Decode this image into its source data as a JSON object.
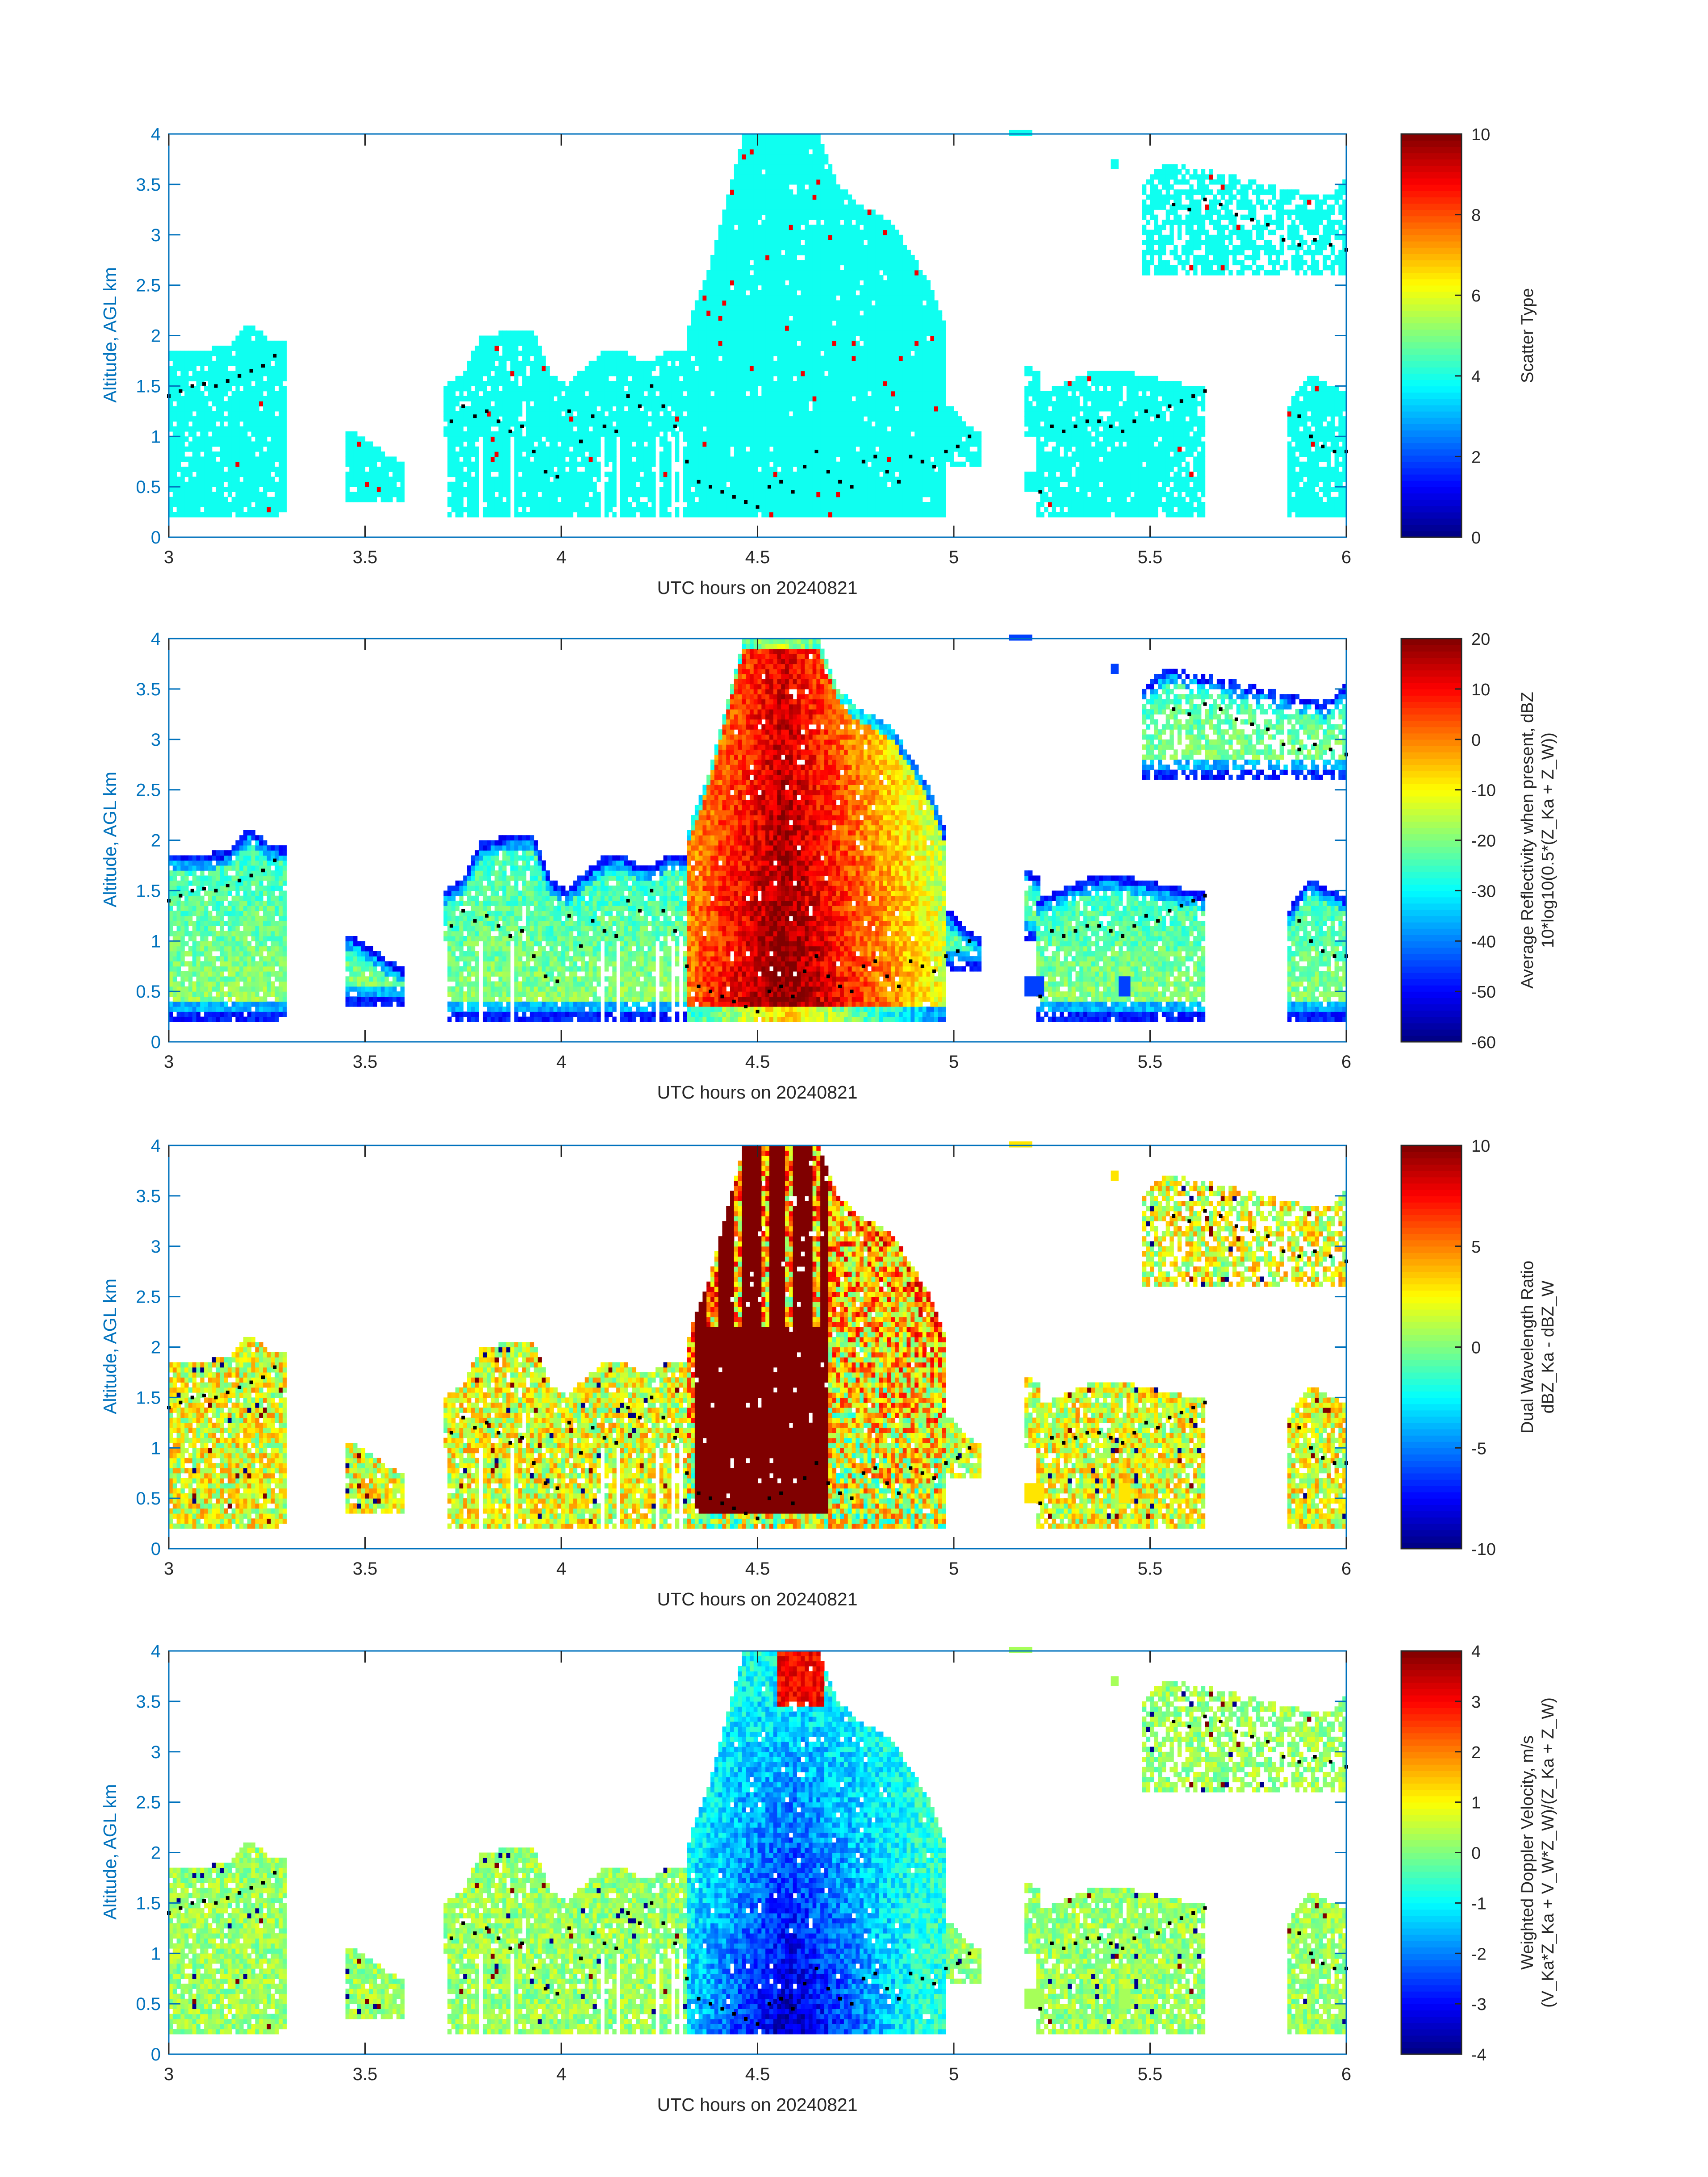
{
  "figure": {
    "date": "20240821",
    "colormap": "jet",
    "accent_axis_color": "#0072bd",
    "track_marker_color": "#000000"
  },
  "chart_data": [
    {
      "type": "heatmap",
      "panel": "scatter-type",
      "xlabel": "UTC hours on 20240821",
      "ylabel": "Altitude, AGL km",
      "xlim": [
        3,
        6
      ],
      "ylim": [
        0,
        4
      ],
      "xticks": [
        "3",
        "3.5",
        "4",
        "4.5",
        "5",
        "5.5",
        "6"
      ],
      "yticks": [
        "0",
        "0.5",
        "1",
        "1.5",
        "2",
        "2.5",
        "3",
        "3.5",
        "4"
      ],
      "colorbar": {
        "label": "Scatter Type",
        "label2": "",
        "clim": [
          0,
          10
        ],
        "ticks": [
          "0",
          "2",
          "4",
          "6",
          "8",
          "10"
        ]
      },
      "grid": false,
      "fill_mode": "scatter",
      "background_value": 3.9,
      "accent_value": 8.9
    },
    {
      "type": "heatmap",
      "panel": "reflectivity",
      "xlabel": "UTC hours on 20240821",
      "ylabel": "Altitude, AGL km",
      "xlim": [
        3,
        6
      ],
      "ylim": [
        0,
        4
      ],
      "xticks": [
        "3",
        "3.5",
        "4",
        "4.5",
        "5",
        "5.5",
        "6"
      ],
      "yticks": [
        "0",
        "0.5",
        "1",
        "1.5",
        "2",
        "2.5",
        "3",
        "3.5",
        "4"
      ],
      "colorbar": {
        "label": "Average Reflectivity when present, dBZ",
        "label2": "10*log10(0.5*(Z_Ka + Z_W))",
        "clim": [
          -60,
          20
        ],
        "ticks": [
          "-60",
          "-50",
          "-40",
          "-30",
          "-20",
          "-10",
          "0",
          "10",
          "20"
        ]
      },
      "grid": false,
      "fill_mode": "reflectivity"
    },
    {
      "type": "heatmap",
      "panel": "dwr",
      "xlabel": "UTC hours on 20240821",
      "ylabel": "Altitude, AGL km",
      "xlim": [
        3,
        6
      ],
      "ylim": [
        0,
        4
      ],
      "xticks": [
        "3",
        "3.5",
        "4",
        "4.5",
        "5",
        "5.5",
        "6"
      ],
      "yticks": [
        "0",
        "0.5",
        "1",
        "1.5",
        "2",
        "2.5",
        "3",
        "3.5",
        "4"
      ],
      "colorbar": {
        "label": "Dual Wavelength Ratio",
        "label2": "dBZ_Ka - dBZ_W",
        "clim": [
          -10,
          10
        ],
        "ticks": [
          "-10",
          "-5",
          "0",
          "5",
          "10"
        ]
      },
      "grid": false,
      "fill_mode": "dwr"
    },
    {
      "type": "heatmap",
      "panel": "doppler",
      "xlabel": "UTC hours on 20240821",
      "ylabel": "Altitude, AGL km",
      "xlim": [
        3,
        6
      ],
      "ylim": [
        0,
        4
      ],
      "xticks": [
        "3",
        "3.5",
        "4",
        "4.5",
        "5",
        "5.5",
        "6"
      ],
      "yticks": [
        "0",
        "0.5",
        "1",
        "1.5",
        "2",
        "2.5",
        "3",
        "3.5",
        "4"
      ],
      "colorbar": {
        "label": "Weighted Doppler Velocity, m/s",
        "label2": "(V_Ka*Z_Ka + V_W*Z_W)/(Z_Ka + Z_W)",
        "clim": [
          -4,
          4
        ],
        "ticks": [
          "-4",
          "-3",
          "-2",
          "-1",
          "0",
          "1",
          "2",
          "3",
          "4"
        ]
      },
      "grid": false,
      "fill_mode": "doppler"
    }
  ],
  "echo_regions": [
    {
      "name": "left-block",
      "x0": 3.0,
      "x1": 3.3,
      "ybot": 0.2,
      "ytop": [
        1.85,
        1.85,
        1.85,
        1.9,
        2.1,
        1.95,
        1.9
      ]
    },
    {
      "name": "small-cells",
      "x0": 3.45,
      "x1": 3.6,
      "ybot": 0.35,
      "ytop": [
        1.05,
        0.95,
        0.8,
        0.7
      ]
    },
    {
      "name": "mid-block",
      "x0": 3.7,
      "x1": 4.32,
      "ybot": 0.2,
      "ytop": [
        1.5,
        1.6,
        1.95,
        2.0,
        2.05,
        2.05,
        1.6,
        1.5,
        1.65,
        1.8,
        1.85,
        1.75,
        1.75,
        1.85,
        1.8
      ]
    },
    {
      "name": "main-core",
      "x0": 4.32,
      "x1": 4.98,
      "ybot": 0.2,
      "ytop": [
        2.1,
        2.6,
        3.3,
        4.0,
        4.0,
        4.0,
        4.0,
        4.0,
        3.5,
        3.3,
        3.2,
        3.1,
        2.8,
        2.5,
        2.0
      ]
    },
    {
      "name": "tail-edge",
      "x0": 4.98,
      "x1": 5.07,
      "ybot": 0.7,
      "ytop": [
        1.3,
        1.1,
        1.0
      ]
    },
    {
      "name": "scattered-cell",
      "x0": 5.18,
      "x1": 5.22,
      "ybot": 1.0,
      "ytop": [
        1.7,
        1.6
      ]
    },
    {
      "name": "right-block",
      "x0": 5.21,
      "x1": 5.64,
      "ybot": 0.2,
      "ytop": [
        1.4,
        1.5,
        1.6,
        1.65,
        1.6,
        1.55,
        1.5,
        1.45
      ]
    },
    {
      "name": "upper-right",
      "x0": 5.48,
      "x1": 6.0,
      "ybot": 2.6,
      "ytop": [
        3.5,
        3.7,
        3.65,
        3.6,
        3.55,
        3.5,
        3.45,
        3.4,
        3.35,
        3.55
      ]
    },
    {
      "name": "far-right-low",
      "x0": 5.85,
      "x1": 6.0,
      "ybot": 0.2,
      "ytop": [
        1.3,
        1.6,
        1.5,
        1.4
      ]
    }
  ],
  "track_points": {
    "x": [
      3.0,
      3.03,
      3.06,
      3.09,
      3.12,
      3.15,
      3.18,
      3.21,
      3.24,
      3.27,
      3.72,
      3.75,
      3.78,
      3.81,
      3.84,
      3.87,
      3.9,
      3.93,
      3.96,
      3.99,
      4.02,
      4.05,
      4.08,
      4.11,
      4.14,
      4.17,
      4.2,
      4.23,
      4.26,
      4.29,
      4.32,
      4.35,
      4.38,
      4.41,
      4.44,
      4.47,
      4.5,
      4.53,
      4.56,
      4.59,
      4.62,
      4.65,
      4.68,
      4.71,
      4.74,
      4.77,
      4.8,
      4.83,
      4.86,
      4.89,
      4.92,
      4.95,
      4.98,
      5.01,
      5.04,
      5.22,
      5.25,
      5.28,
      5.31,
      5.34,
      5.37,
      5.4,
      5.43,
      5.46,
      5.49,
      5.52,
      5.55,
      5.58,
      5.61,
      5.64,
      5.56,
      5.6,
      5.64,
      5.68,
      5.72,
      5.76,
      5.8,
      5.84,
      5.88,
      5.92,
      5.96,
      6.0,
      5.88,
      5.91,
      5.94,
      5.97,
      6.0
    ],
    "y": [
      1.4,
      1.45,
      1.5,
      1.52,
      1.5,
      1.55,
      1.6,
      1.65,
      1.7,
      1.8,
      1.15,
      1.3,
      1.2,
      1.25,
      1.15,
      1.05,
      1.1,
      0.85,
      0.65,
      0.6,
      1.25,
      0.95,
      1.2,
      1.1,
      1.05,
      1.4,
      1.3,
      1.5,
      1.3,
      1.1,
      0.75,
      0.55,
      0.5,
      0.45,
      0.4,
      0.35,
      0.3,
      0.5,
      0.55,
      0.45,
      0.7,
      0.85,
      0.65,
      0.55,
      0.5,
      0.75,
      0.8,
      0.65,
      0.55,
      0.8,
      0.75,
      0.7,
      0.85,
      0.9,
      1.0,
      0.45,
      1.1,
      1.05,
      1.1,
      1.15,
      1.15,
      1.1,
      1.05,
      1.15,
      1.25,
      1.2,
      1.3,
      1.35,
      1.4,
      1.45,
      3.3,
      3.25,
      3.35,
      3.3,
      3.2,
      3.15,
      3.1,
      2.95,
      2.9,
      2.95,
      2.9,
      2.85,
      1.2,
      1.0,
      0.9,
      0.85,
      0.85
    ]
  },
  "sparse_cells": [
    {
      "x": 5.14,
      "y": 3.98,
      "w": 0.06,
      "h": 0.06
    },
    {
      "x": 5.4,
      "y": 3.65,
      "w": 0.02,
      "h": 0.1
    },
    {
      "x": 5.18,
      "y": 0.45,
      "w": 0.05,
      "h": 0.2
    },
    {
      "x": 5.42,
      "y": 0.45,
      "w": 0.03,
      "h": 0.2
    }
  ]
}
